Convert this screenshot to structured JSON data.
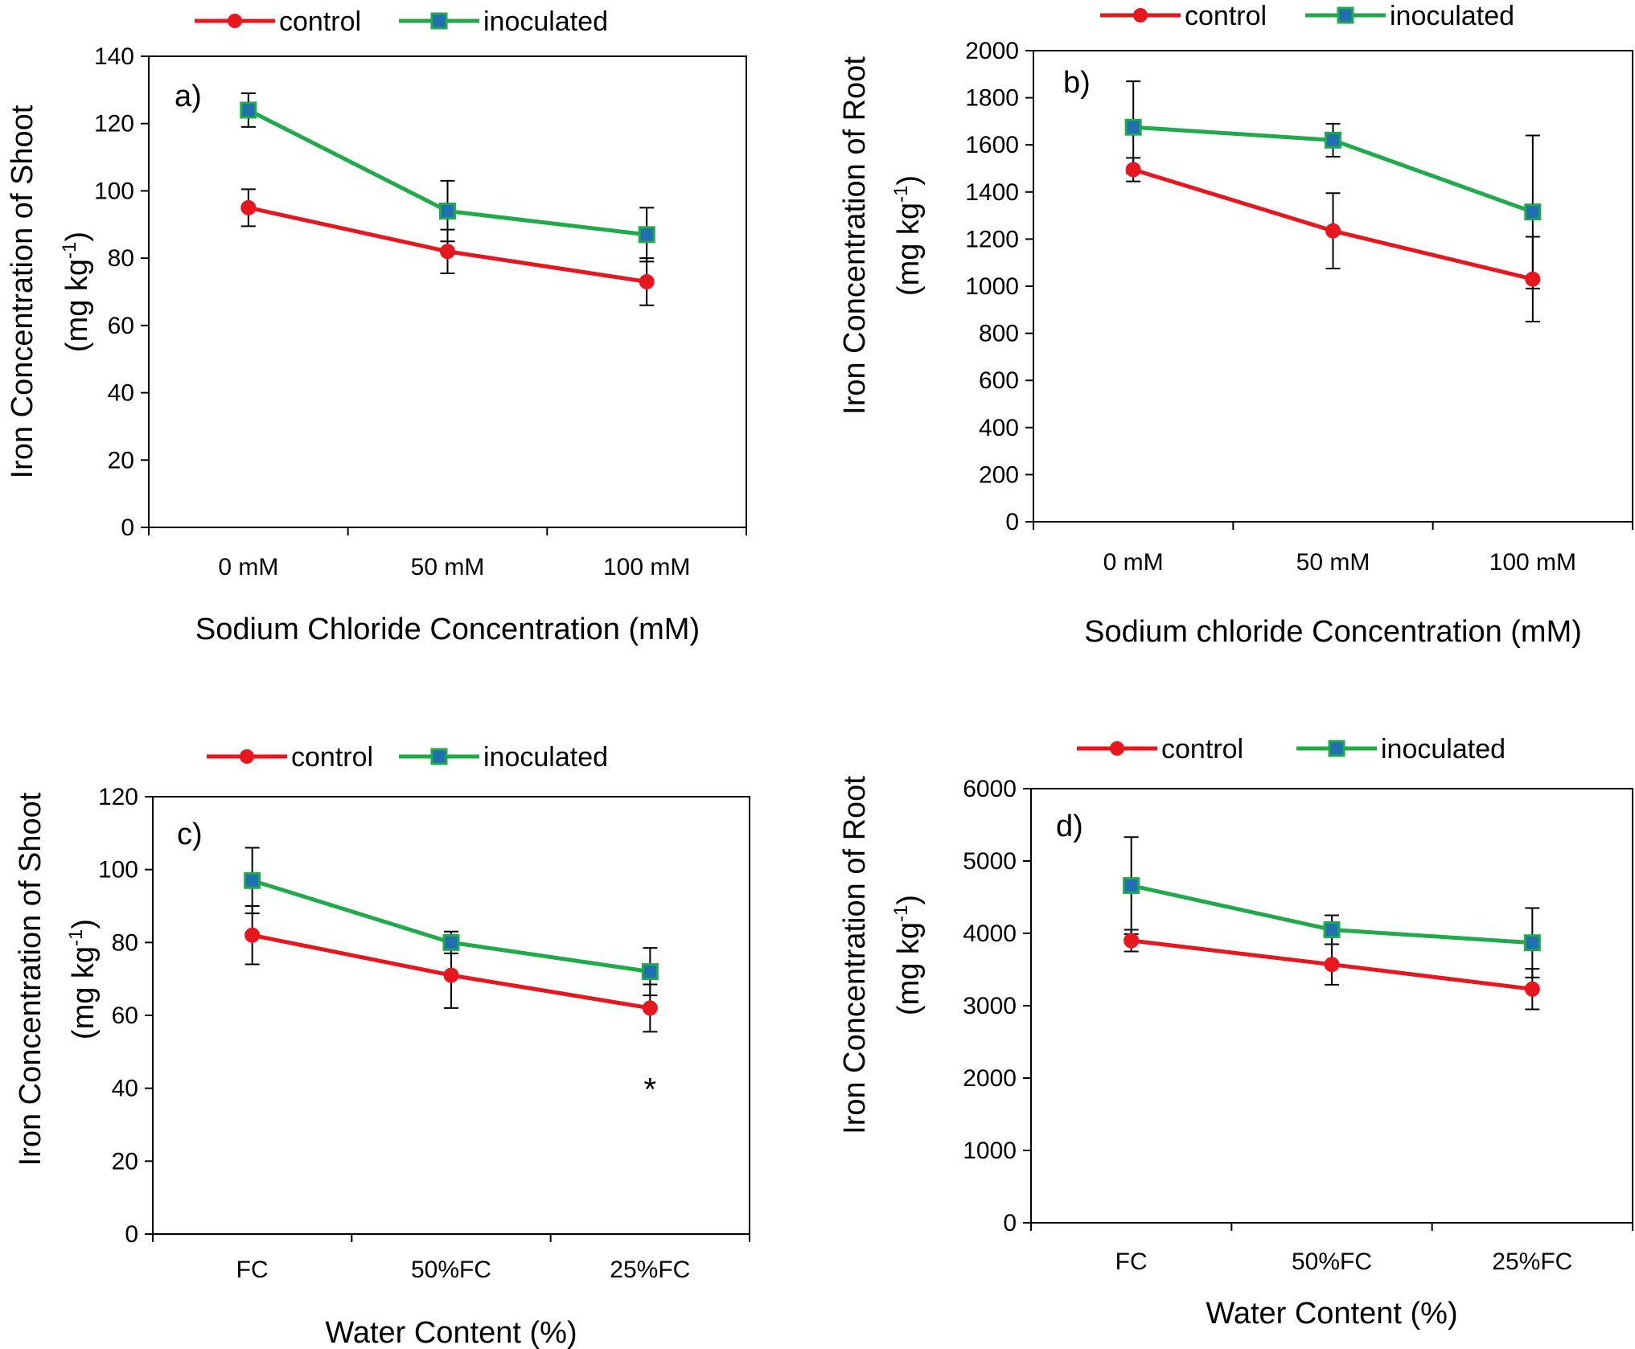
{
  "chart_data": [
    {
      "type": "line",
      "panel_label": "a)",
      "categories": [
        "0 mM",
        "50 mM",
        "100 mM"
      ],
      "series": [
        {
          "name": "control",
          "color": "#e8161e",
          "marker": "circle",
          "values": [
            95,
            82,
            73
          ],
          "errors": [
            5.5,
            6.5,
            7
          ]
        },
        {
          "name": "inoculated",
          "color": "#1fab4a",
          "marker": "square",
          "values": [
            124,
            94,
            87
          ],
          "errors": [
            5,
            9,
            8
          ]
        }
      ],
      "xlabel": "Sodium Chloride Concentration (mM)",
      "ylabel_line1": "Iron Concentration of Shoot",
      "ylabel_line2_prefix": "(mg kg",
      "ylabel_line2_sup": "-1",
      "ylabel_line2_suffix": ")",
      "ylim": [
        0,
        140
      ],
      "yticks": [
        "0",
        "20",
        "40",
        "60",
        "80",
        "100",
        "120",
        "140"
      ],
      "annotations": []
    },
    {
      "type": "line",
      "panel_label": "b)",
      "categories": [
        "0 mM",
        "50 mM",
        "100 mM"
      ],
      "series": [
        {
          "name": "control",
          "color": "#e8161e",
          "marker": "circle",
          "values": [
            1495,
            1235,
            1030
          ],
          "errors": [
            50,
            160,
            180
          ]
        },
        {
          "name": "inoculated",
          "color": "#1fab4a",
          "marker": "square",
          "values": [
            1675,
            1620,
            1315
          ],
          "errors": [
            195,
            70,
            325
          ]
        }
      ],
      "xlabel": "Sodium chloride Concentration (mM)",
      "ylabel_line1": "Iron Concentration of Root",
      "ylabel_line2_prefix": "(mg kg",
      "ylabel_line2_sup": "-1",
      "ylabel_line2_suffix": ")",
      "ylim": [
        0,
        2000
      ],
      "yticks": [
        "0",
        "200",
        "400",
        "600",
        "800",
        "1000",
        "1200",
        "1400",
        "1600",
        "1800",
        "2000"
      ],
      "annotations": []
    },
    {
      "type": "line",
      "panel_label": "c)",
      "categories": [
        "FC",
        "50%FC",
        "25%FC"
      ],
      "series": [
        {
          "name": "control",
          "color": "#e8161e",
          "marker": "circle",
          "values": [
            82,
            71,
            62
          ],
          "errors": [
            8,
            9,
            6.5
          ]
        },
        {
          "name": "inoculated",
          "color": "#1fab4a",
          "marker": "square",
          "values": [
            97,
            80,
            72
          ],
          "errors": [
            9,
            3,
            6.5
          ]
        }
      ],
      "xlabel": "Water Content (%)",
      "ylabel_line1": "Iron Concentration of Shoot",
      "ylabel_line2_prefix": "(mg kg",
      "ylabel_line2_sup": "-1",
      "ylabel_line2_suffix": ")",
      "ylim": [
        0,
        120
      ],
      "yticks": [
        "0",
        "20",
        "40",
        "60",
        "80",
        "100",
        "120"
      ],
      "annotations": [
        {
          "text": "*",
          "category": "25%FC",
          "y": 42
        }
      ]
    },
    {
      "type": "line",
      "panel_label": "d)",
      "categories": [
        "FC",
        "50%FC",
        "25%FC"
      ],
      "series": [
        {
          "name": "control",
          "color": "#e8161e",
          "marker": "circle",
          "values": [
            3900,
            3570,
            3230
          ],
          "errors": [
            150,
            280,
            280
          ]
        },
        {
          "name": "inoculated",
          "color": "#1fab4a",
          "marker": "square",
          "values": [
            4660,
            4050,
            3870
          ],
          "errors": [
            670,
            200,
            480
          ]
        }
      ],
      "xlabel": "Water Content (%)",
      "ylabel_line1": "Iron Concentration of Root",
      "ylabel_line2_prefix": "(mg kg",
      "ylabel_line2_sup": "-1",
      "ylabel_line2_suffix": ")",
      "ylim": [
        0,
        6000
      ],
      "yticks": [
        "0",
        "1000",
        "2000",
        "3000",
        "4000",
        "5000",
        "6000"
      ],
      "annotations": []
    }
  ],
  "colors": {
    "control": "#e8161e",
    "inoculated": "#1fab4a",
    "square_fill": "#1f6fb2"
  }
}
